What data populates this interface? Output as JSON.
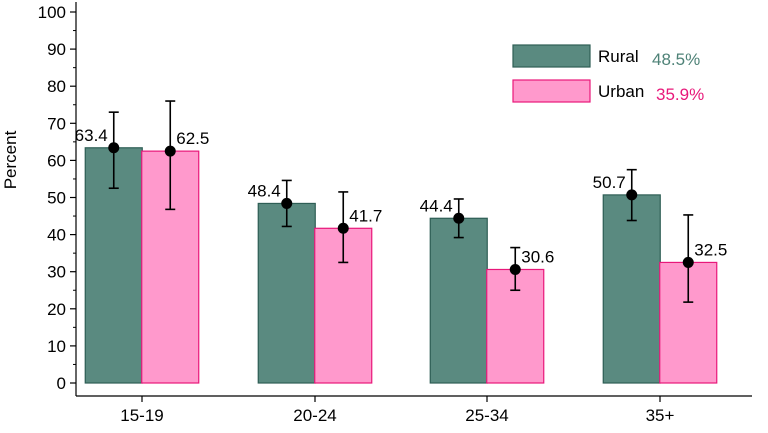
{
  "chart_data": {
    "type": "bar",
    "title": "",
    "xlabel": "",
    "ylabel": "Percent",
    "ylim": [
      0,
      100
    ],
    "yticks": [
      0,
      10,
      20,
      30,
      40,
      50,
      60,
      70,
      80,
      90,
      100
    ],
    "categories": [
      "15-19",
      "20-24",
      "25-34",
      "35+"
    ],
    "grid": false,
    "legend_position": "top-right",
    "error_bars": true,
    "series": [
      {
        "name": "Rural",
        "overall": "48.5%",
        "color": "#5A8A80",
        "edge_color": "#2E5E55",
        "text_color": "#4E8277",
        "values": [
          63.4,
          48.4,
          44.4,
          50.7
        ],
        "ci_low": [
          52.5,
          42.2,
          39.2,
          43.8
        ],
        "ci_high": [
          73.0,
          54.6,
          49.6,
          57.5
        ]
      },
      {
        "name": "Urban",
        "overall": "35.9%",
        "color": "#FF99CC",
        "edge_color": "#E8187A",
        "text_color": "#E8187A",
        "values": [
          62.5,
          41.7,
          30.6,
          32.5
        ],
        "ci_low": [
          46.8,
          32.5,
          25.0,
          21.8
        ],
        "ci_high": [
          76.0,
          51.5,
          36.5,
          45.3
        ]
      }
    ]
  }
}
